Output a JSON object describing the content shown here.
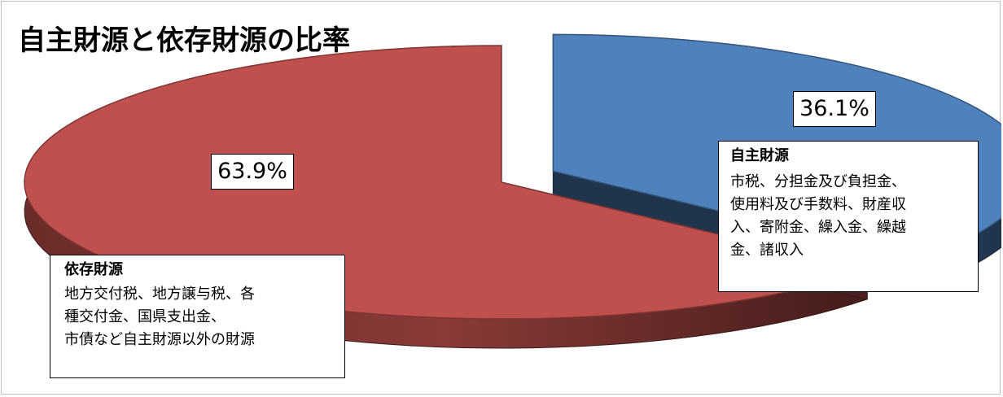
{
  "chart_data": {
    "type": "pie",
    "title": "自主財源と依存財源の比率",
    "slices": [
      {
        "label": "自主財源",
        "value": 36.1,
        "value_label": "36.1%",
        "color": "#4f81bd",
        "exploded": true
      },
      {
        "label": "依存財源",
        "value": 63.9,
        "value_label": "63.9%",
        "color": "#c0504d",
        "exploded": false
      }
    ],
    "style": "3d-exploded",
    "annotations": [
      {
        "title": "自主財源",
        "lines": [
          "市税、分担金及び負担金、",
          "使用料及び手数料、財産収",
          "入、寄附金、繰入金、繰越",
          "金、諸収入"
        ]
      },
      {
        "title": "依存財源",
        "lines": [
          "地方交付税、地方譲与税、各",
          "種交付金、国県支出金、",
          "市債など自主財源以外の財源"
        ]
      }
    ]
  }
}
